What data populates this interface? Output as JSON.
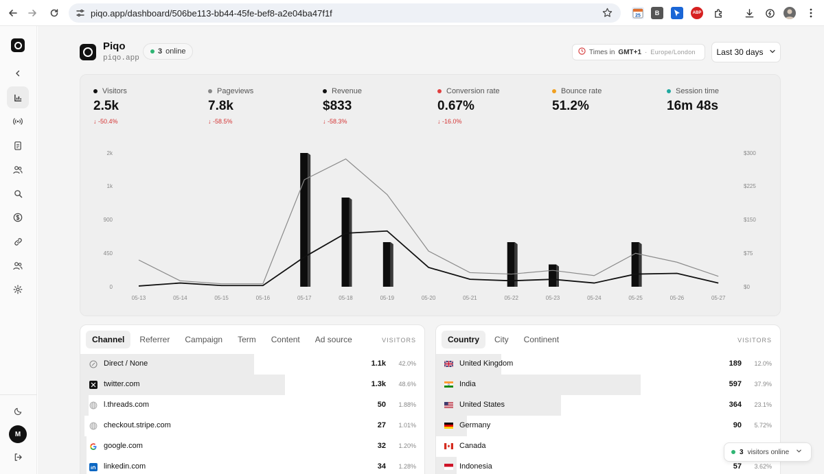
{
  "browser": {
    "url": "piqo.app/dashboard/506be113-bb44-45fe-bef8-a2e04ba47f1f",
    "extensions": [
      {
        "name": "calendar-extension",
        "badge": "25"
      },
      {
        "name": "b-extension",
        "text": "B"
      },
      {
        "name": "cursor-extension"
      },
      {
        "name": "adblock-extension",
        "text": "ABP"
      }
    ]
  },
  "sidebar": {
    "items": [
      "back",
      "analytics",
      "realtime",
      "pages",
      "users",
      "search",
      "revenue",
      "links",
      "team",
      "settings"
    ],
    "avatar": "M"
  },
  "header": {
    "site_name": "Piqo",
    "site_domain": "piqo.app",
    "online_count": "3",
    "online_label": "online",
    "tz_prefix": "Times in",
    "tz_value": "GMT+1",
    "tz_sep": "·",
    "tz_region": "Europe/London",
    "range_label": "Last 30 days"
  },
  "metrics": [
    {
      "label": "Visitors",
      "value": "2.5k",
      "change": "↓ -50.4%",
      "color": "#111111"
    },
    {
      "label": "Pageviews",
      "value": "7.8k",
      "change": "↓ -58.5%",
      "color": "#888888"
    },
    {
      "label": "Revenue",
      "value": "$833",
      "change": "↓ -58.3%",
      "color": "#111111"
    },
    {
      "label": "Conversion rate",
      "value": "0.67%",
      "change": "↓ -16.0%",
      "color": "#e04040"
    },
    {
      "label": "Bounce rate",
      "value": "51.2%",
      "change": "",
      "color": "#f0a020"
    },
    {
      "label": "Session time",
      "value": "16m 48s",
      "change": "",
      "color": "#20a8a0"
    }
  ],
  "chart_data": {
    "type": "line",
    "categories": [
      "05-13",
      "05-14",
      "05-15",
      "05-16",
      "05-17",
      "05-18",
      "05-19",
      "05-20",
      "05-21",
      "05-22",
      "05-23",
      "05-24",
      "05-25",
      "05-26",
      "05-27"
    ],
    "y_left_ticks": [
      "0",
      "450",
      "900",
      "1k",
      "2k"
    ],
    "y_right_ticks": [
      "$0",
      "$75",
      "$150",
      "$225",
      "$300"
    ],
    "series": [
      {
        "values": [
          180,
          40,
          20,
          20,
          720,
          860,
          620,
          240,
          95,
          85,
          110,
          75,
          225,
          165,
          70
        ]
      },
      {
        "values": [
          5,
          25,
          8,
          8,
          200,
          360,
          375,
          130,
          50,
          40,
          50,
          25,
          85,
          90,
          25
        ]
      },
      {
        "values": [
          0,
          0,
          0,
          0,
          300,
          200,
          100,
          0,
          0,
          100,
          50,
          0,
          100,
          0,
          0
        ]
      }
    ],
    "xlabel": "",
    "ylabel": ""
  },
  "channel_panel": {
    "tabs": [
      "Channel",
      "Referrer",
      "Campaign",
      "Term",
      "Content",
      "Ad source"
    ],
    "column_header": "VISITORS",
    "rows": [
      {
        "label": "Direct / None",
        "visitors": "1.1k",
        "pct": "42.0%",
        "fill": 0.85,
        "icon": "direct-icon"
      },
      {
        "label": "twitter.com",
        "visitors": "1.3k",
        "pct": "48.6%",
        "fill": 1.0,
        "icon": "x-icon"
      },
      {
        "label": "l.threads.com",
        "visitors": "50",
        "pct": "1.88%",
        "fill": 0.04,
        "icon": "globe-icon"
      },
      {
        "label": "checkout.stripe.com",
        "visitors": "27",
        "pct": "1.01%",
        "fill": 0.02,
        "icon": "globe-icon"
      },
      {
        "label": "google.com",
        "visitors": "32",
        "pct": "1.20%",
        "fill": 0.03,
        "icon": "google-icon"
      },
      {
        "label": "linkedin.com",
        "visitors": "34",
        "pct": "1.28%",
        "fill": 0.03,
        "icon": "linkedin-icon"
      }
    ]
  },
  "country_panel": {
    "tabs": [
      "Country",
      "City",
      "Continent"
    ],
    "column_header": "VISITORS",
    "rows": [
      {
        "label": "United Kingdom",
        "visitors": "189",
        "pct": "12.0%",
        "fill": 0.32,
        "flag": "uk"
      },
      {
        "label": "India",
        "visitors": "597",
        "pct": "37.9%",
        "fill": 1.0,
        "flag": "in"
      },
      {
        "label": "United States",
        "visitors": "364",
        "pct": "23.1%",
        "fill": 0.61,
        "flag": "us"
      },
      {
        "label": "Germany",
        "visitors": "90",
        "pct": "5.72%",
        "fill": 0.15,
        "flag": "de"
      },
      {
        "label": "Canada",
        "visitors": "",
        "pct": "",
        "fill": 0.0,
        "flag": "ca"
      },
      {
        "label": "Indonesia",
        "visitors": "57",
        "pct": "3.62%",
        "fill": 0.1,
        "flag": "id"
      }
    ]
  },
  "toast": {
    "count": "3",
    "label": "visitors online"
  }
}
